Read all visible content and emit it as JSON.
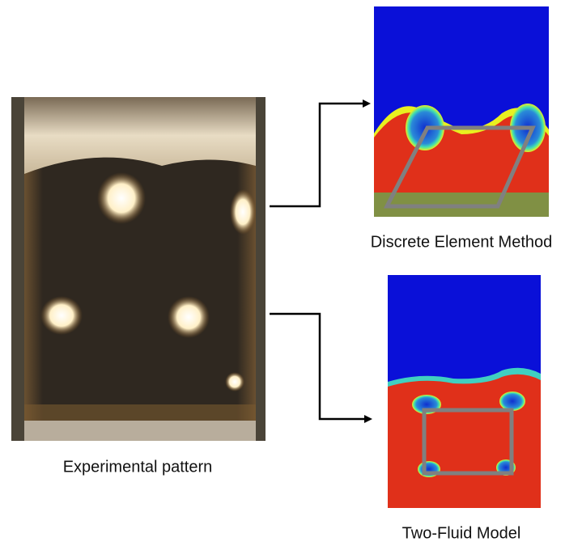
{
  "panels": {
    "experimental": {
      "label": "Experimental pattern"
    },
    "dem": {
      "label": "Discrete Element Method"
    },
    "tfm": {
      "label": "Two-Fluid Model"
    }
  }
}
